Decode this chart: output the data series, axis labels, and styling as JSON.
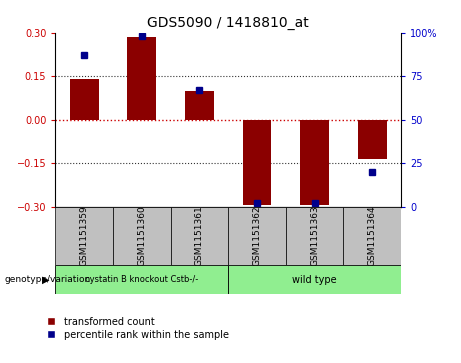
{
  "title": "GDS5090 / 1418810_at",
  "samples": [
    "GSM1151359",
    "GSM1151360",
    "GSM1151361",
    "GSM1151362",
    "GSM1151363",
    "GSM1151364"
  ],
  "transformed_counts": [
    0.14,
    0.285,
    0.1,
    -0.295,
    -0.295,
    -0.135
  ],
  "percentile_ranks": [
    87,
    98,
    67,
    2,
    2,
    20
  ],
  "ylim_left": [
    -0.3,
    0.3
  ],
  "ylim_right": [
    0,
    100
  ],
  "yticks_left": [
    -0.3,
    -0.15,
    0,
    0.15,
    0.3
  ],
  "yticks_right": [
    0,
    25,
    50,
    75,
    100
  ],
  "bar_color": "#8B0000",
  "dot_color": "#00008B",
  "zero_line_color": "#CC0000",
  "dotted_line_color": "#333333",
  "group1_label": "cystatin B knockout Cstb-/-",
  "group2_label": "wild type",
  "group1_color": "#90EE90",
  "group2_color": "#90EE90",
  "sample_box_color": "#C0C0C0",
  "genotype_label": "genotype/variation",
  "legend_red": "transformed count",
  "legend_blue": "percentile rank within the sample",
  "bar_width": 0.5,
  "ylabel_left_color": "#CC0000",
  "ylabel_right_color": "#0000CC",
  "title_fontsize": 10,
  "tick_fontsize": 7,
  "sample_fontsize": 6.5,
  "legend_fontsize": 7,
  "group_fontsize": 7
}
